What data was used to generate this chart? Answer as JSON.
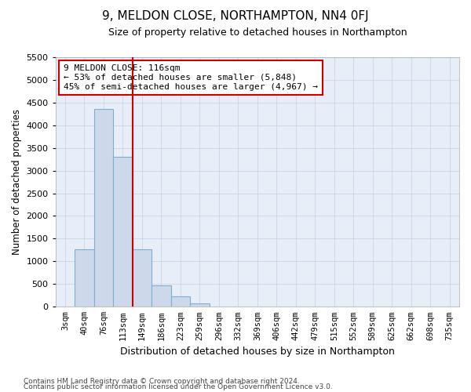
{
  "title": "9, MELDON CLOSE, NORTHAMPTON, NN4 0FJ",
  "subtitle": "Size of property relative to detached houses in Northampton",
  "xlabel": "Distribution of detached houses by size in Northampton",
  "ylabel": "Number of detached properties",
  "footnote1": "Contains HM Land Registry data © Crown copyright and database right 2024.",
  "footnote2": "Contains public sector information licensed under the Open Government Licence v3.0.",
  "bar_labels": [
    "3sqm",
    "40sqm",
    "76sqm",
    "113sqm",
    "149sqm",
    "186sqm",
    "223sqm",
    "259sqm",
    "296sqm",
    "332sqm",
    "369sqm",
    "406sqm",
    "442sqm",
    "479sqm",
    "515sqm",
    "552sqm",
    "589sqm",
    "625sqm",
    "662sqm",
    "698sqm",
    "735sqm"
  ],
  "bar_values": [
    0,
    1270,
    4350,
    3300,
    1270,
    480,
    230,
    80,
    0,
    0,
    0,
    0,
    0,
    0,
    0,
    0,
    0,
    0,
    0,
    0,
    0
  ],
  "bar_color": "#cdd9ea",
  "bar_edgecolor": "#7aafd4",
  "vline_color": "#cc0000",
  "vline_pos": 3.5,
  "annotation_text": "9 MELDON CLOSE: 116sqm\n← 53% of detached houses are smaller (5,848)\n45% of semi-detached houses are larger (4,967) →",
  "annotation_box_facecolor": "#ffffff",
  "annotation_box_edgecolor": "#cc0000",
  "ylim": [
    0,
    5500
  ],
  "yticks": [
    0,
    500,
    1000,
    1500,
    2000,
    2500,
    3000,
    3500,
    4000,
    4500,
    5000,
    5500
  ],
  "plot_facecolor": "#e8eef7",
  "fig_facecolor": "#ffffff",
  "grid_color": "#c8d4e8",
  "title_fontsize": 11,
  "subtitle_fontsize": 9
}
